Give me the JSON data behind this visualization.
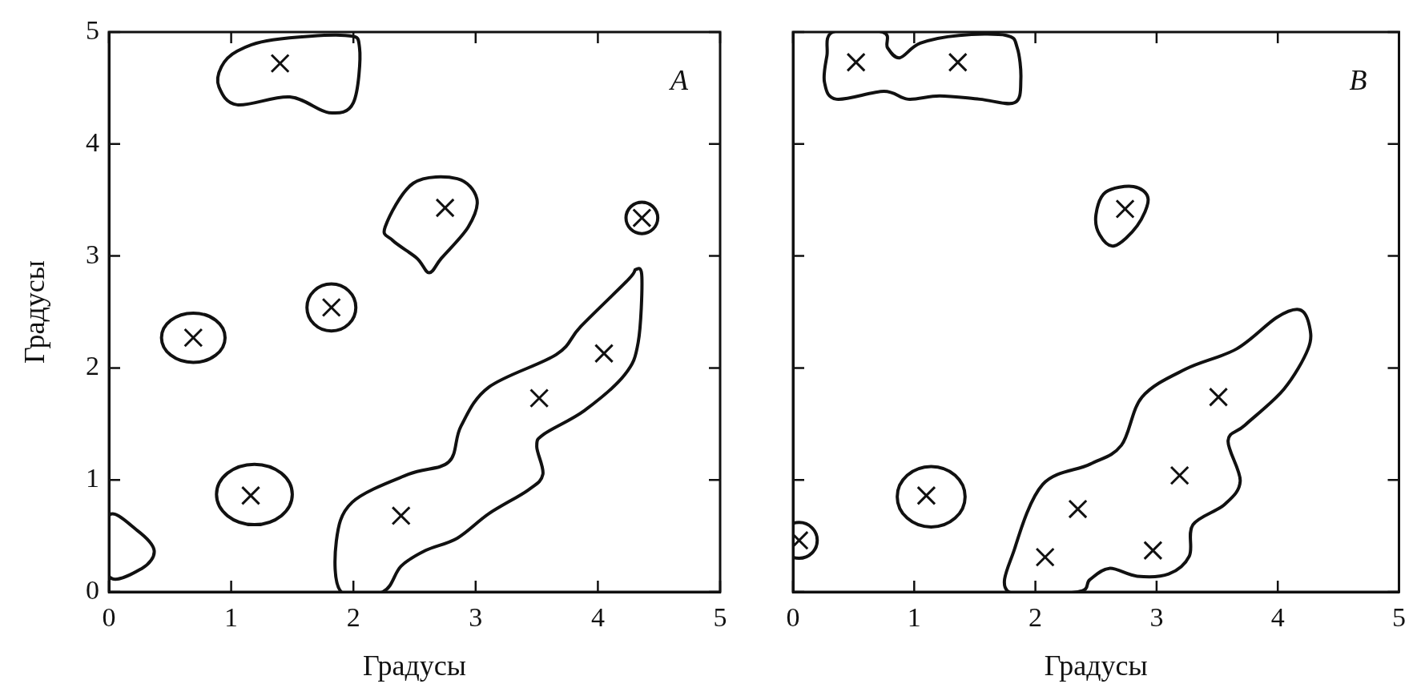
{
  "chart_data": [
    {
      "type": "scatter",
      "title": "A",
      "xlabel": "Градусы",
      "ylabel": "Градусы",
      "x": [
        1.4,
        2.75,
        4.36,
        1.82,
        0.69,
        4.05,
        3.52,
        1.16,
        2.39
      ],
      "values": [
        4.72,
        3.43,
        3.34,
        2.54,
        2.27,
        2.13,
        1.73,
        0.86,
        0.68
      ],
      "color": "#111111",
      "marker": "cross",
      "xlim": [
        0,
        5
      ],
      "xticks": [
        0,
        1,
        2,
        3,
        4,
        5
      ],
      "ylim": [
        0,
        5
      ],
      "yticks": [
        0,
        1,
        2,
        3,
        4,
        5
      ],
      "grid": false,
      "legend": false
    },
    {
      "type": "scatter",
      "title": "B",
      "xlabel": "Градусы",
      "x": [
        0.52,
        1.36,
        2.74,
        3.51,
        3.19,
        2.35,
        1.1,
        2.08,
        2.97,
        0.05
      ],
      "values": [
        4.73,
        4.73,
        3.42,
        1.74,
        1.04,
        0.74,
        0.86,
        0.31,
        0.37,
        0.46
      ],
      "color": "#111111",
      "marker": "cross",
      "xlim": [
        0,
        5
      ],
      "xticks": [
        0,
        1,
        2,
        3,
        4,
        5
      ],
      "ylim": [
        0,
        5
      ],
      "yticks": [
        0,
        1,
        2,
        3,
        4,
        5
      ],
      "grid": false,
      "legend": false,
      "tick_labels": "x"
    }
  ]
}
